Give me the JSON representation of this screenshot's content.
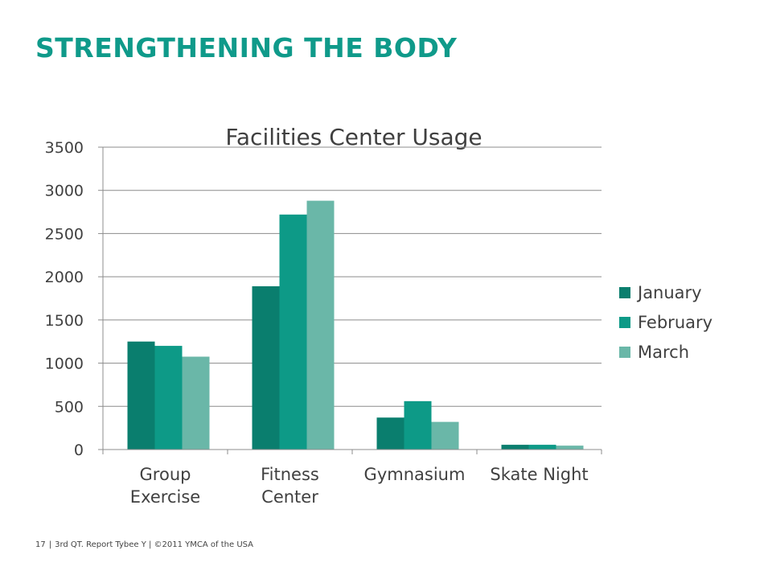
{
  "slide": {
    "title": "STRENGTHENING THE BODY"
  },
  "footer": {
    "page_number": "17",
    "text": "3rd QT. Report Tybee Y | ©2011 YMCA of the USA"
  },
  "colors": {
    "title": "#0f9a8a",
    "january": "#0a7e6e",
    "february": "#0d9a87",
    "march": "#6ab7a8",
    "gridline": "#8c8c8c",
    "text": "#404040"
  },
  "chart_data": {
    "type": "bar",
    "title": "Facilities Center Usage",
    "xlabel": "",
    "ylabel": "",
    "ylim": [
      0,
      3500
    ],
    "yticks": [
      0,
      500,
      1000,
      1500,
      2000,
      2500,
      3000,
      3500
    ],
    "grid": true,
    "legend_position": "right",
    "categories": [
      [
        "Group",
        "Exercise"
      ],
      [
        "Fitness",
        "Center"
      ],
      [
        "Gymnasium"
      ],
      [
        "Skate Night"
      ]
    ],
    "series": [
      {
        "name": "January",
        "color": "#0a7e6e",
        "values": [
          1250,
          1890,
          370,
          55
        ]
      },
      {
        "name": "February",
        "color": "#0d9a87",
        "values": [
          1200,
          2720,
          560,
          55
        ]
      },
      {
        "name": "March",
        "color": "#6ab7a8",
        "values": [
          1075,
          2880,
          320,
          45
        ]
      }
    ]
  }
}
